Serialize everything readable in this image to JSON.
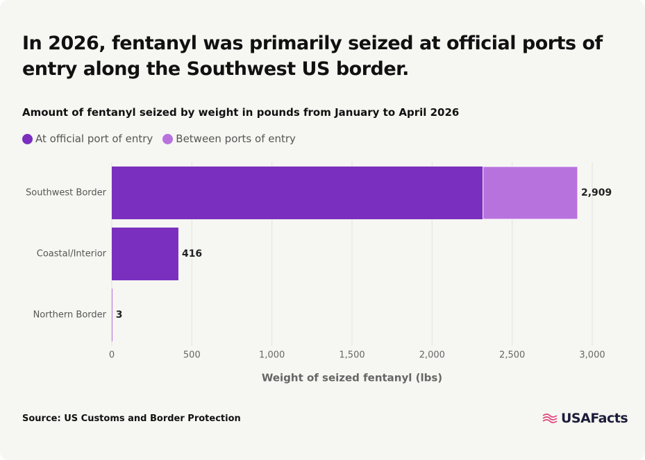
{
  "chart_data": {
    "type": "stacked-barh",
    "title": "In 2026, fentanyl was primarily seized at official ports of entry along the Southwest US border.",
    "subtitle": "Amount of fentanyl seized by weight in pounds from January to April 2026",
    "categories": [
      "Southwest Border",
      "Coastal/Interior",
      "Northern Border"
    ],
    "series": [
      {
        "name": "At official port of entry",
        "color": "#7b2fbe",
        "values": [
          2318,
          416,
          3
        ]
      },
      {
        "name": "Between ports of entry",
        "color": "#b872de",
        "values": [
          591,
          0,
          0
        ]
      }
    ],
    "totals": {
      "values": [
        2909,
        416,
        3
      ],
      "value_labels": [
        "2,909",
        "416",
        "3"
      ]
    },
    "xlabel": "Weight of seized fentanyl (lbs)",
    "xlim": [
      0,
      3000
    ],
    "xticks": [
      0,
      500,
      {
        "value": 1000,
        "label": "1,000"
      },
      {
        "value": 1500,
        "label": "1,500"
      },
      {
        "value": 2000,
        "label": "2,000"
      },
      {
        "value": 2500,
        "label": "2,500"
      },
      {
        "value": 3000,
        "label": "3,000"
      }
    ],
    "grid": true,
    "source": "Source: US Customs and Border Protection",
    "logo": "USAFacts"
  }
}
